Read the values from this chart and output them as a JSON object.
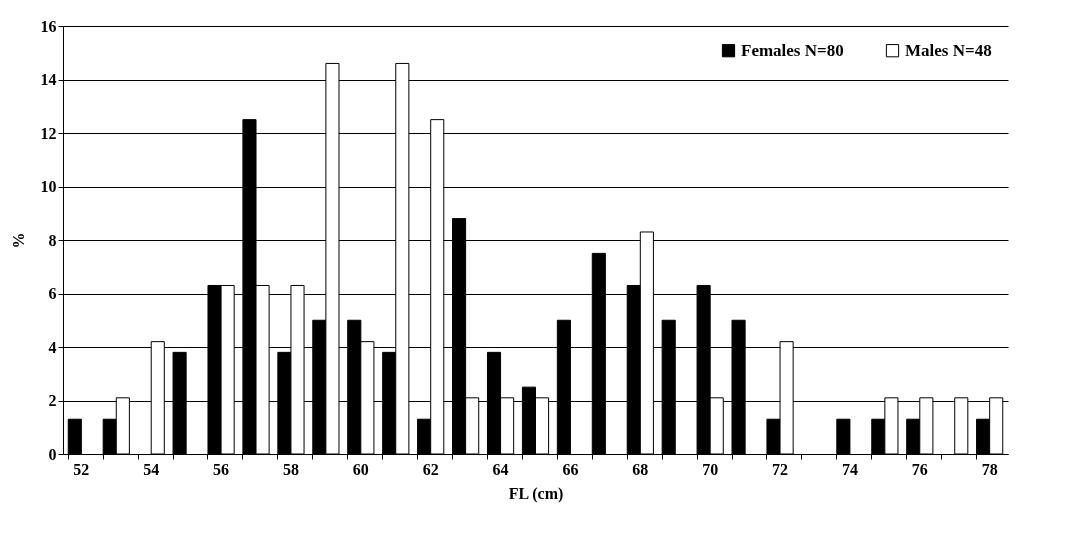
{
  "chart_data": {
    "type": "bar",
    "xlabel": "FL (cm)",
    "ylabel": "%",
    "categories": [
      "52",
      null,
      "54",
      null,
      "56",
      null,
      "58",
      null,
      "60",
      null,
      "62",
      null,
      "64",
      null,
      "66",
      null,
      "68",
      null,
      "70",
      null,
      "72",
      null,
      "74",
      null,
      "76",
      null,
      "78"
    ],
    "series": [
      {
        "name": "Females N=80",
        "color": "#000000",
        "values": [
          1.3,
          1.3,
          null,
          3.8,
          6.3,
          12.5,
          3.8,
          5,
          5,
          3.8,
          1.3,
          8.8,
          3.8,
          2.5,
          5,
          7.5,
          6.3,
          5,
          6.3,
          5,
          1.3,
          null,
          1.3,
          1.3,
          1.3,
          null,
          1.3
        ]
      },
      {
        "name": "Males N=48",
        "color": "#ffffff",
        "values": [
          null,
          2.1,
          4.2,
          null,
          6.3,
          6.3,
          6.3,
          14.6,
          4.2,
          14.6,
          12.5,
          2.1,
          2.1,
          2.1,
          null,
          null,
          8.3,
          null,
          2.1,
          null,
          4.2,
          null,
          null,
          2.1,
          2.1,
          2.1,
          2.1
        ]
      }
    ],
    "ylim": [
      0,
      16
    ],
    "yticks": [
      0,
      2,
      4,
      6,
      8,
      10,
      12,
      14,
      16
    ],
    "grid": "y",
    "legend": "top right"
  }
}
